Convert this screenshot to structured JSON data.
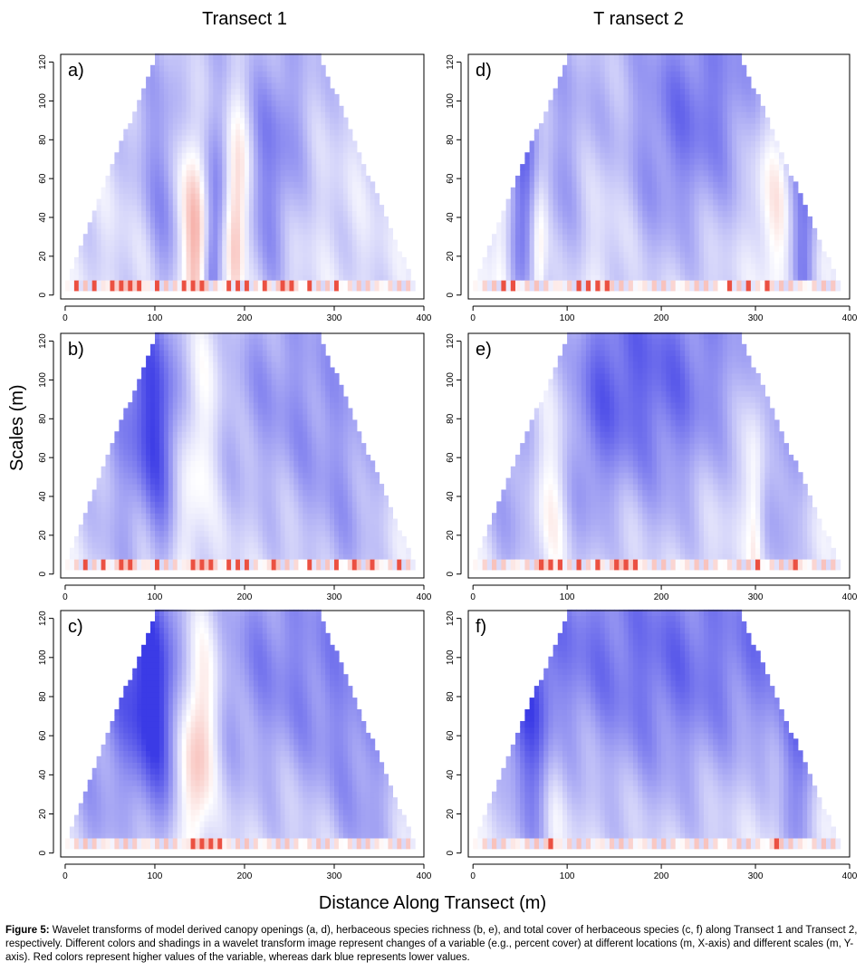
{
  "column_titles": [
    "Transect 1",
    "T ransect 2"
  ],
  "y_axis_label": "Scales (m)",
  "x_axis_label": "Distance Along Transect (m)",
  "caption": {
    "label": "Figure 5:",
    "text": " Wavelet transforms of model derived canopy openings (a, d), herbaceous species richness (b, e), and total cover of herbaceous species (c, f) along Transect 1 and Transect 2, respectively.  Different colors and shadings in a wavelet transform image represent changes of a variable (e.g., percent cover) at different locations (m, X-axis) and different scales (m, Y-axis).  Red colors represent higher values of the variable, whereas dark blue represents lower values."
  },
  "colors": {
    "high": "#e8311f",
    "neutral": "#ffffff",
    "low": "#3b3be6"
  },
  "chart_data": [
    {
      "id": "a",
      "type": "heatmap",
      "panel_label": "a)",
      "transect": 1,
      "variable": "canopy openings",
      "x_ticks": [
        0,
        100,
        200,
        300,
        400
      ],
      "y_ticks": [
        0,
        20,
        40,
        60,
        80,
        100,
        120
      ],
      "xlim": [
        -5,
        400
      ],
      "ylim": [
        -2,
        124
      ],
      "cone": {
        "x_start": 0,
        "x_end": 390,
        "max_scale": 122
      },
      "components": [
        {
          "x": 145,
          "s": 40,
          "w": 10,
          "a": 0.7
        },
        {
          "x": 190,
          "s": 50,
          "w": 8,
          "a": 0.6
        },
        {
          "x": 165,
          "s": 45,
          "w": 8,
          "a": -0.6
        },
        {
          "x": 110,
          "s": 60,
          "w": 15,
          "a": -0.35
        },
        {
          "x": 230,
          "s": 60,
          "w": 15,
          "a": -0.35
        },
        {
          "x": 200,
          "s": 100,
          "w": 40,
          "a": -0.15
        }
      ],
      "fine_scale_highs": [
        10,
        30,
        50,
        60,
        70,
        80,
        100,
        130,
        140,
        150,
        180,
        190,
        200,
        220,
        240,
        250,
        270,
        300
      ]
    },
    {
      "id": "d",
      "type": "heatmap",
      "panel_label": "d)",
      "transect": 2,
      "variable": "canopy openings",
      "x_ticks": [
        0,
        100,
        200,
        300,
        400
      ],
      "y_ticks": [
        0,
        20,
        40,
        60,
        80,
        100,
        120
      ],
      "xlim": [
        -5,
        400
      ],
      "ylim": [
        -2,
        124
      ],
      "cone": {
        "x_start": 0,
        "x_end": 390,
        "max_scale": 122
      },
      "components": [
        {
          "x": 135,
          "s": 100,
          "w": 25,
          "a": 0.45
        },
        {
          "x": 320,
          "s": 60,
          "w": 12,
          "a": 0.35
        },
        {
          "x": 70,
          "s": 40,
          "w": 6,
          "a": 0.4
        },
        {
          "x": 30,
          "s": 45,
          "w": 8,
          "a": 0.3
        },
        {
          "x": 200,
          "s": 100,
          "w": 50,
          "a": -0.6
        },
        {
          "x": 50,
          "s": 50,
          "w": 10,
          "a": -0.55
        },
        {
          "x": 350,
          "s": 40,
          "w": 10,
          "a": -0.5
        },
        {
          "x": 95,
          "s": 70,
          "w": 20,
          "a": -0.3
        }
      ],
      "fine_scale_highs": [
        30,
        40,
        110,
        120,
        130,
        140,
        270,
        290,
        310
      ]
    },
    {
      "id": "b",
      "type": "heatmap",
      "panel_label": "b)",
      "transect": 1,
      "variable": "herbaceous species richness",
      "x_ticks": [
        0,
        100,
        200,
        300,
        400
      ],
      "y_ticks": [
        0,
        20,
        40,
        60,
        80,
        100,
        120
      ],
      "xlim": [
        -5,
        400
      ],
      "ylim": [
        -2,
        124
      ],
      "cone": {
        "x_start": 0,
        "x_end": 390,
        "max_scale": 122
      },
      "components": [
        {
          "x": 140,
          "s": 100,
          "w": 14,
          "a": 0.55
        },
        {
          "x": 105,
          "s": 85,
          "w": 15,
          "a": -0.75
        },
        {
          "x": 230,
          "s": 100,
          "w": 50,
          "a": -0.3
        },
        {
          "x": 60,
          "s": 40,
          "w": 20,
          "a": -0.25
        },
        {
          "x": 310,
          "s": 30,
          "w": 30,
          "a": -0.25
        }
      ],
      "fine_scale_highs": [
        20,
        40,
        60,
        70,
        100,
        140,
        150,
        160,
        180,
        190,
        200,
        230,
        270,
        300,
        320,
        340,
        370
      ]
    },
    {
      "id": "e",
      "type": "heatmap",
      "panel_label": "e)",
      "transect": 2,
      "variable": "herbaceous species richness",
      "x_ticks": [
        0,
        100,
        200,
        300,
        400
      ],
      "y_ticks": [
        0,
        20,
        40,
        60,
        80,
        100,
        120
      ],
      "xlim": [
        -5,
        400
      ],
      "ylim": [
        -2,
        124
      ],
      "cone": {
        "x_start": 0,
        "x_end": 390,
        "max_scale": 122
      },
      "components": [
        {
          "x": 85,
          "s": 75,
          "w": 12,
          "a": 0.35
        },
        {
          "x": 300,
          "s": 50,
          "w": 6,
          "a": 0.3
        },
        {
          "x": 200,
          "s": 100,
          "w": 35,
          "a": -0.55
        },
        {
          "x": 120,
          "s": 70,
          "w": 20,
          "a": -0.35
        },
        {
          "x": 330,
          "s": 50,
          "w": 15,
          "a": -0.3
        },
        {
          "x": 40,
          "s": 50,
          "w": 15,
          "a": -0.3
        }
      ],
      "fine_scale_highs": [
        70,
        80,
        90,
        110,
        130,
        150,
        160,
        170,
        300,
        340
      ]
    },
    {
      "id": "c",
      "type": "heatmap",
      "panel_label": "c)",
      "transect": 1,
      "variable": "total cover of herbaceous species",
      "x_ticks": [
        0,
        100,
        200,
        300,
        400
      ],
      "y_ticks": [
        0,
        20,
        40,
        60,
        80,
        100,
        120
      ],
      "xlim": [
        -5,
        400
      ],
      "ylim": [
        -2,
        124
      ],
      "cone": {
        "x_start": 0,
        "x_end": 390,
        "max_scale": 122
      },
      "components": [
        {
          "x": 145,
          "s": 80,
          "w": 12,
          "a": 0.8
        },
        {
          "x": 100,
          "s": 80,
          "w": 18,
          "a": -0.7
        },
        {
          "x": 230,
          "s": 100,
          "w": 60,
          "a": -0.4
        },
        {
          "x": 40,
          "s": 40,
          "w": 30,
          "a": -0.3
        },
        {
          "x": 330,
          "s": 30,
          "w": 30,
          "a": -0.3
        }
      ],
      "fine_scale_highs": [
        140,
        150,
        160,
        170
      ]
    },
    {
      "id": "f",
      "type": "heatmap",
      "panel_label": "f)",
      "transect": 2,
      "variable": "total cover of herbaceous species",
      "x_ticks": [
        0,
        100,
        200,
        300,
        400
      ],
      "y_ticks": [
        0,
        20,
        40,
        60,
        80,
        100,
        120
      ],
      "xlim": [
        -5,
        400
      ],
      "ylim": [
        -2,
        124
      ],
      "cone": {
        "x_start": 0,
        "x_end": 390,
        "max_scale": 122
      },
      "components": [
        {
          "x": 200,
          "s": 100,
          "w": 70,
          "a": -0.55
        },
        {
          "x": 60,
          "s": 60,
          "w": 15,
          "a": -0.55
        },
        {
          "x": 340,
          "s": 50,
          "w": 15,
          "a": -0.45
        },
        {
          "x": 85,
          "s": 60,
          "w": 8,
          "a": 0.15
        },
        {
          "x": 320,
          "s": 40,
          "w": 8,
          "a": 0.15
        }
      ],
      "fine_scale_highs": [
        80,
        320
      ]
    }
  ]
}
